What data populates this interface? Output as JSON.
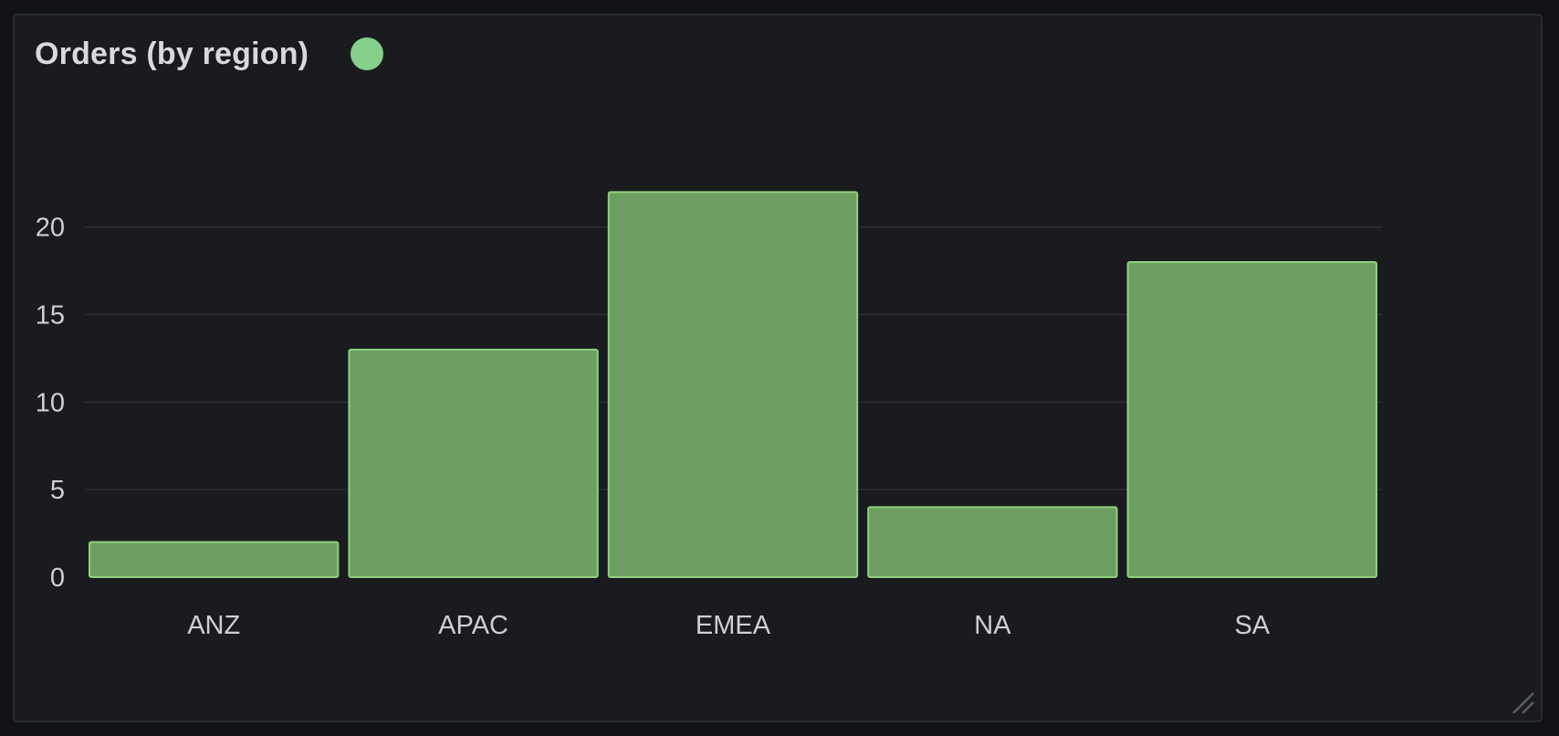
{
  "panel": {
    "title": "Orders (by region)"
  },
  "colors": {
    "background": "#111217",
    "panel": "#1a1b1f",
    "grid": "#2c2e34",
    "bar_fill": "#6e9f62",
    "bar_stroke": "#8fd17f",
    "legend": "#86cf8a",
    "text": "#cfd0d6"
  },
  "icons": {
    "resize": "resize-handle-icon"
  },
  "chart_data": {
    "type": "bar",
    "title": "Orders (by region)",
    "xlabel": "",
    "ylabel": "",
    "categories": [
      "ANZ",
      "APAC",
      "EMEA",
      "NA",
      "SA"
    ],
    "values": [
      2,
      13,
      22,
      4,
      18
    ],
    "ylim": [
      0,
      24
    ],
    "yticks": [
      0,
      5,
      10,
      15,
      20
    ],
    "grid": true,
    "legend": "top-left"
  }
}
